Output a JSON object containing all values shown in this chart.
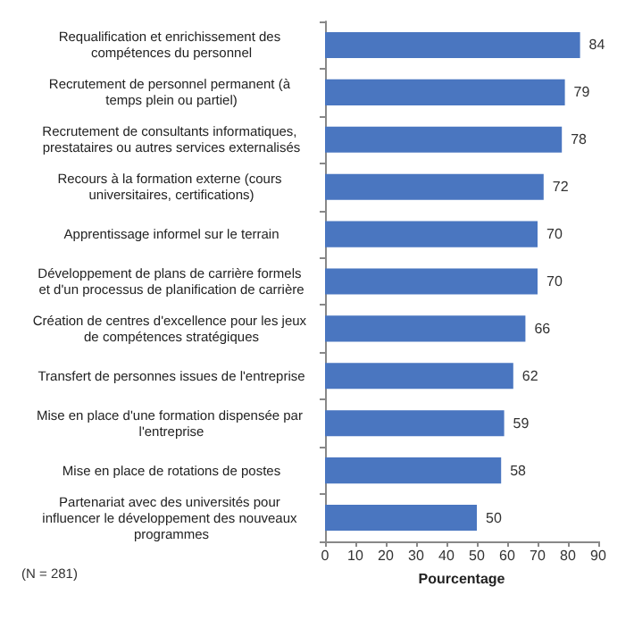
{
  "chart_data": {
    "type": "bar",
    "orientation": "horizontal",
    "categories": [
      "Requalification et enrichissement des compétences du personnel",
      "Recrutement de personnel permanent (à temps plein ou partiel)",
      "Recrutement de consultants informatiques, prestataires ou autres services externalisés",
      "Recours à la formation externe (cours universitaires, certifications)",
      "Apprentissage informel sur le terrain",
      "Développement de plans de carrière formels et d'un processus de planification de carrière",
      "Création de centres d'excellence pour les jeux de compétences stratégiques",
      "Transfert de personnes issues de l'entreprise",
      "Mise en place d'une formation dispensée par l'entreprise",
      "Mise en place de rotations de postes",
      "Partenariat avec des universités pour influencer le développement des nouveaux programmes"
    ],
    "values": [
      84,
      79,
      78,
      72,
      70,
      70,
      66,
      62,
      59,
      58,
      50
    ],
    "color": "#4a76c0",
    "data_labels": true,
    "xlim": [
      0,
      90
    ],
    "xticks": [
      0,
      10,
      20,
      30,
      40,
      50,
      60,
      70,
      80,
      90
    ],
    "xlabel": "Pourcentage",
    "grid": false,
    "annotations": [
      "(N = 281)"
    ]
  }
}
